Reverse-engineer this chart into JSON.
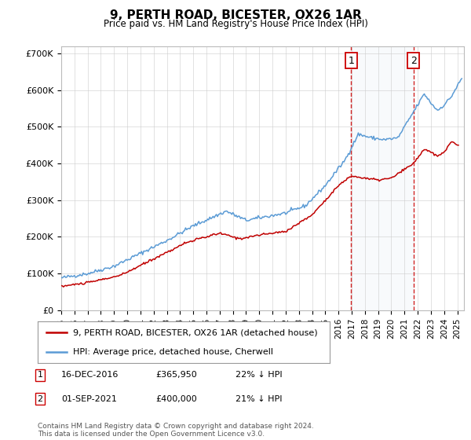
{
  "title": "9, PERTH ROAD, BICESTER, OX26 1AR",
  "subtitle": "Price paid vs. HM Land Registry's House Price Index (HPI)",
  "ylim": [
    0,
    720000
  ],
  "xlim_start": 1995.0,
  "xlim_end": 2025.5,
  "hpi_color": "#5b9bd5",
  "price_color": "#c00000",
  "vline_color": "#cc0000",
  "shade_color": "#dce6f1",
  "marker1_x": 2016.96,
  "marker2_x": 2021.67,
  "legend_line1": "9, PERTH ROAD, BICESTER, OX26 1AR (detached house)",
  "legend_line2": "HPI: Average price, detached house, Cherwell",
  "footer": "Contains HM Land Registry data © Crown copyright and database right 2024.\nThis data is licensed under the Open Government Licence v3.0.",
  "bg_color": "#ffffff",
  "grid_color": "#cccccc",
  "hpi_key_x": [
    1995.0,
    1997.0,
    1999.0,
    2001.0,
    2003.0,
    2005.0,
    2007.5,
    2009.0,
    2010.5,
    2012.0,
    2013.5,
    2015.0,
    2016.5,
    2017.5,
    2018.5,
    2019.5,
    2020.5,
    2021.5,
    2022.5,
    2023.0,
    2023.5,
    2024.0,
    2024.5,
    2025.3
  ],
  "hpi_key_y": [
    88000,
    100000,
    120000,
    155000,
    190000,
    230000,
    270000,
    245000,
    255000,
    265000,
    285000,
    340000,
    410000,
    480000,
    470000,
    465000,
    470000,
    530000,
    590000,
    565000,
    545000,
    560000,
    580000,
    630000
  ],
  "price_key_x": [
    1995.0,
    1997.0,
    1999.5,
    2002.0,
    2004.5,
    2007.0,
    2008.5,
    2010.0,
    2012.0,
    2014.0,
    2016.0,
    2016.96,
    2018.0,
    2019.0,
    2020.0,
    2021.67,
    2022.5,
    2023.5,
    2024.0,
    2024.5,
    2025.0
  ],
  "price_key_y": [
    65000,
    75000,
    95000,
    140000,
    185000,
    210000,
    195000,
    205000,
    215000,
    260000,
    340000,
    365950,
    360000,
    355000,
    360000,
    400000,
    440000,
    420000,
    430000,
    460000,
    450000
  ],
  "ytick_vals": [
    0,
    100000,
    200000,
    300000,
    400000,
    500000,
    600000,
    700000
  ],
  "ytick_labels": [
    "£0",
    "£100K",
    "£200K",
    "£300K",
    "£400K",
    "£500K",
    "£600K",
    "£700K"
  ],
  "xtick_vals": [
    1995,
    1996,
    1997,
    1998,
    1999,
    2000,
    2001,
    2002,
    2003,
    2004,
    2005,
    2006,
    2007,
    2008,
    2009,
    2010,
    2011,
    2012,
    2013,
    2014,
    2015,
    2016,
    2017,
    2018,
    2019,
    2020,
    2021,
    2022,
    2023,
    2024,
    2025
  ],
  "table_rows": [
    {
      "label": "1",
      "date": "16-DEC-2016",
      "price": "£365,950",
      "pct": "22% ↓ HPI"
    },
    {
      "label": "2",
      "date": "01-SEP-2021",
      "price": "£400,000",
      "pct": "21% ↓ HPI"
    }
  ]
}
